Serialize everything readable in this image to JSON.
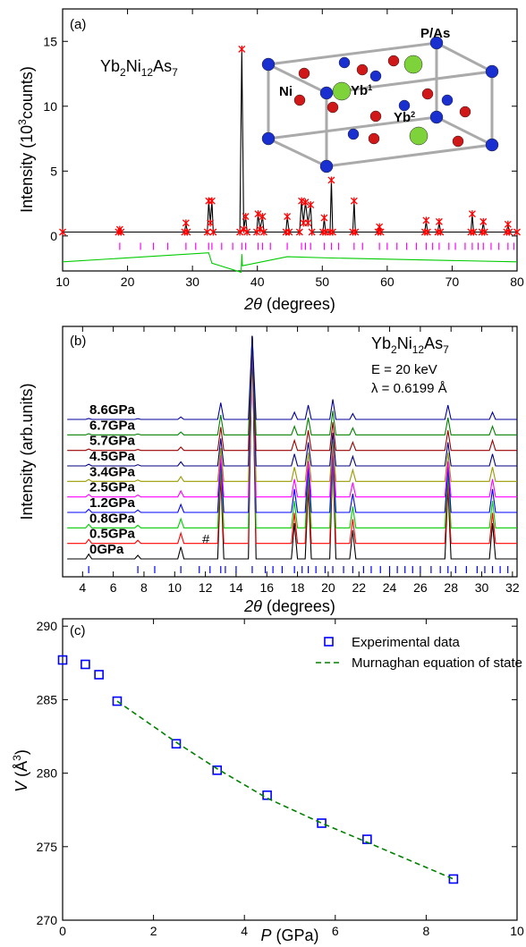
{
  "chart_data": [
    {
      "type": "line",
      "label": "(a)",
      "formula": [
        "Yb",
        "2",
        "Ni",
        "12",
        "As",
        "7"
      ],
      "inset_labels": {
        "p_as": "P/As",
        "ni": "Ni",
        "yb1": [
          "Yb",
          "1"
        ],
        "yb2": [
          "Yb",
          "2"
        ]
      },
      "ylabel": [
        "Intensity (10",
        "3",
        "counts)"
      ],
      "xlabel": [
        "2θ",
        " (degrees)"
      ],
      "xlim": [
        10,
        80
      ],
      "xticks": [
        10,
        20,
        30,
        40,
        50,
        60,
        70,
        80
      ],
      "ylim": [
        -2.7,
        17.5
      ],
      "yticks": [
        0,
        5,
        10,
        15
      ],
      "x": [
        10,
        18.6,
        18.8,
        19.0,
        28.8,
        29.0,
        29.2,
        32.3,
        32.5,
        32.75,
        33.0,
        33.2,
        37.3,
        37.6,
        37.9,
        38.2,
        38.4,
        39.9,
        40.1,
        40.4,
        40.8,
        41.0,
        44.4,
        44.6,
        44.9,
        46.5,
        46.8,
        47.1,
        47.4,
        47.8,
        48.2,
        48.4,
        50.1,
        50.3,
        50.5,
        51.2,
        51.4,
        51.6,
        54.7,
        54.9,
        55.1,
        58.6,
        58.8,
        59.0,
        65.8,
        66.0,
        66.2,
        67.8,
        68.0,
        68.2,
        72.9,
        73.1,
        73.3,
        74.6,
        74.8,
        75.0,
        78.4,
        78.6,
        78.8,
        80
      ],
      "series": [
        {
          "color": "#000000",
          "values": [
            0.3,
            0.3,
            0.5,
            0.3,
            0.3,
            1.0,
            0.3,
            0.3,
            2.7,
            1.0,
            2.7,
            0.3,
            0.3,
            14.4,
            0.5,
            1.5,
            0.3,
            0.3,
            1.7,
            0.5,
            1.5,
            0.3,
            0.3,
            1.5,
            0.3,
            0.3,
            2.7,
            1.0,
            2.6,
            1.0,
            2.4,
            0.3,
            0.3,
            1.4,
            0.3,
            0.3,
            4.3,
            0.3,
            0.3,
            2.7,
            0.3,
            0.3,
            0.7,
            0.3,
            0.3,
            1.2,
            0.3,
            0.3,
            1.1,
            0.3,
            0.3,
            1.7,
            0.3,
            0.3,
            1.1,
            0.3,
            0.3,
            0.9,
            0.3,
            0.3
          ]
        },
        {
          "color": "#ff0000",
          "marker": "x",
          "values": [
            0.3,
            0.3,
            0.5,
            0.3,
            0.3,
            1.0,
            0.3,
            0.3,
            2.7,
            1.0,
            2.7,
            0.3,
            0.3,
            14.4,
            0.5,
            1.5,
            0.3,
            0.3,
            1.7,
            0.5,
            1.5,
            0.3,
            0.3,
            1.5,
            0.3,
            0.3,
            2.7,
            1.0,
            2.6,
            1.0,
            2.4,
            0.3,
            0.3,
            1.4,
            0.3,
            0.3,
            4.3,
            0.3,
            0.3,
            2.7,
            0.3,
            0.3,
            0.7,
            0.3,
            0.3,
            1.2,
            0.3,
            0.3,
            1.1,
            0.3,
            0.3,
            1.7,
            0.3,
            0.3,
            1.1,
            0.3,
            0.3,
            0.9,
            0.3,
            0.3
          ]
        },
        {
          "color": "#00cc00",
          "x": [
            10,
            32.5,
            33.0,
            37.5,
            37.6,
            37.7,
            44.6,
            51.4,
            80
          ],
          "values": [
            -2.0,
            -1.3,
            -2.1,
            -2.8,
            -1.4,
            -2.3,
            -1.6,
            -1.7,
            -2.0
          ]
        }
      ],
      "bragg_ticks": {
        "color": "#ff00ff",
        "value": -0.8,
        "x": [
          18.8,
          22,
          24,
          26.2,
          29,
          30.5,
          32.5,
          33,
          34.5,
          36.2,
          37.6,
          38.2,
          40.1,
          40.8,
          42,
          44.6,
          46.8,
          47.4,
          48.2,
          50.3,
          51.4,
          52.5,
          54.9,
          56.2,
          58.8,
          60,
          61.5,
          63,
          64.5,
          66,
          67,
          68,
          69.5,
          70.5,
          72,
          73.1,
          74,
          74.8,
          76,
          77.2,
          78.6,
          79.5
        ]
      }
    },
    {
      "type": "line",
      "label": "(b)",
      "formula": [
        "Yb",
        "2",
        "Ni",
        "12",
        "As",
        "7"
      ],
      "annotations": [
        "E = 20 keV",
        "λ = 0.6199 Å",
        "#"
      ],
      "ylabel": "Intensity (arb.units)",
      "xlabel": [
        "2θ",
        " (degrees)"
      ],
      "xlim": [
        2.7,
        32.3
      ],
      "xticks": [
        4,
        6,
        8,
        10,
        12,
        14,
        16,
        18,
        20,
        22,
        24,
        26,
        28,
        30,
        32
      ],
      "ylim": [
        -5,
        100
      ],
      "x": [
        3,
        4.2,
        4.4,
        4.6,
        7.4,
        7.6,
        7.8,
        10.2,
        10.4,
        10.6,
        12.8,
        13.0,
        13.2,
        14.8,
        15.05,
        15.3,
        17.6,
        17.8,
        18.0,
        18.5,
        18.7,
        18.9,
        20.1,
        20.3,
        20.5,
        21.4,
        21.6,
        21.8,
        27.6,
        27.8,
        28.0,
        30.5,
        30.7,
        30.9,
        32.3
      ],
      "series": [
        {
          "name": "0GPa",
          "color": "#000000",
          "values": [
            2.5,
            2.5,
            4.5,
            2.5,
            2.5,
            4.0,
            2.5,
            2.5,
            7.5,
            2.5,
            2.5,
            37.5,
            2.5,
            2.5,
            96,
            2.5,
            2.5,
            17.5,
            2.5,
            2.5,
            32.5,
            2.5,
            2.5,
            44.5,
            2.5,
            2.5,
            14.5,
            2.5,
            2.5,
            32.5,
            2.5,
            2.5,
            17.5,
            2.5,
            2.5
          ]
        },
        {
          "name": "0.5GPa",
          "color": "#ff0000",
          "values": [
            9,
            9,
            10.7,
            9,
            9,
            10.3,
            9,
            9,
            13.3,
            9,
            9,
            38.8,
            9,
            9,
            96,
            9,
            9,
            21.8,
            9,
            9,
            34.5,
            9,
            9,
            44.7,
            9,
            9,
            19.2,
            9,
            9,
            34.5,
            9,
            9,
            21.8,
            9,
            9
          ]
        },
        {
          "name": "0.8GPa",
          "color": "#00cc00",
          "values": [
            15.5,
            15.5,
            17.0,
            15.5,
            15.5,
            16.6,
            15.5,
            15.5,
            19.3,
            15.5,
            15.5,
            41.8,
            15.5,
            15.5,
            96,
            15.5,
            15.5,
            26.8,
            15.5,
            15.5,
            38.0,
            15.5,
            15.5,
            47.0,
            15.5,
            15.5,
            24.5,
            15.5,
            15.5,
            38.0,
            15.5,
            15.5,
            26.8,
            15.5,
            15.5
          ]
        },
        {
          "name": "1.2GPa",
          "color": "#0000ff",
          "values": [
            22,
            22,
            23.3,
            22,
            22,
            23.0,
            22,
            22,
            25.3,
            22,
            22,
            44.8,
            22,
            22,
            96,
            22,
            22,
            31.8,
            22,
            22,
            41.5,
            22,
            22,
            49.3,
            22,
            22,
            29.8,
            22,
            22,
            41.5,
            22,
            22,
            31.8,
            22,
            22
          ]
        },
        {
          "name": "2.5GPa",
          "color": "#ff00ff",
          "values": [
            28.5,
            28.5,
            29.5,
            28.5,
            28.5,
            29.3,
            28.5,
            28.5,
            31.0,
            28.5,
            28.5,
            46.0,
            28.5,
            28.5,
            96,
            28.5,
            28.5,
            36.0,
            28.5,
            28.5,
            43.5,
            28.5,
            28.5,
            49.5,
            28.5,
            28.5,
            34.5,
            28.5,
            28.5,
            43.5,
            28.5,
            28.5,
            36.0,
            28.5,
            28.5
          ]
        },
        {
          "name": "3.4GPa",
          "color": "#999900",
          "values": [
            35,
            35,
            35.8,
            35,
            35,
            35.6,
            35,
            35,
            37.0,
            35,
            35,
            49.0,
            35,
            35,
            96,
            35,
            35,
            41.0,
            35,
            35,
            47.0,
            35,
            35,
            51.8,
            35,
            35,
            39.8,
            35,
            35,
            47.0,
            35,
            35,
            41.0,
            35,
            35
          ]
        },
        {
          "name": "4.5GPa",
          "color": "#000080",
          "values": [
            41.5,
            41.5,
            42.2,
            41.5,
            41.5,
            42.0,
            41.5,
            41.5,
            43.2,
            41.5,
            41.5,
            53.0,
            41.5,
            41.5,
            96,
            41.5,
            41.5,
            46.5,
            41.5,
            41.5,
            51.4,
            41.5,
            41.5,
            55.4,
            41.5,
            41.5,
            45.5,
            41.5,
            41.5,
            51.4,
            41.5,
            41.5,
            46.5,
            41.5,
            41.5
          ]
        },
        {
          "name": "5.7GPa",
          "color": "#990000",
          "values": [
            48,
            48,
            48.6,
            48,
            48,
            48.4,
            48,
            48,
            49.4,
            48,
            48,
            57.8,
            48,
            48,
            96,
            48,
            48,
            52.2,
            48,
            48,
            56.4,
            48,
            48,
            59.8,
            48,
            48,
            51.4,
            48,
            48,
            56.4,
            48,
            48,
            52.2,
            48,
            48
          ]
        },
        {
          "name": "6.7GPa",
          "color": "#008000",
          "values": [
            54.5,
            54.5,
            55.0,
            54.5,
            54.5,
            54.9,
            54.5,
            54.5,
            55.7,
            54.5,
            54.5,
            62.9,
            54.5,
            54.5,
            96,
            54.5,
            54.5,
            58.1,
            54.5,
            54.5,
            61.7,
            54.5,
            54.5,
            64.6,
            54.5,
            54.5,
            57.4,
            54.5,
            54.5,
            61.7,
            54.5,
            54.5,
            58.1,
            54.5,
            54.5
          ]
        },
        {
          "name": "8.6GPa",
          "color": "#000099",
          "values": [
            61,
            61,
            61.4,
            61,
            61,
            61.3,
            61,
            61,
            62.0,
            61,
            61,
            68.0,
            61,
            61,
            96,
            61,
            61,
            64.0,
            61,
            61,
            67.0,
            61,
            61,
            69.4,
            61,
            61,
            63.4,
            61,
            61,
            67.0,
            61,
            61,
            64.0,
            61,
            61
          ]
        }
      ],
      "bragg_ticks": {
        "color": "#0000ff",
        "value": -2,
        "x": [
          4.4,
          7.6,
          8.7,
          10.4,
          11.6,
          12.3,
          13.0,
          13.3,
          14.0,
          15.05,
          15.9,
          16.4,
          17.0,
          17.8,
          18.3,
          18.7,
          19.2,
          19.8,
          20.3,
          21.0,
          21.6,
          22.3,
          22.8,
          23.4,
          24.0,
          24.5,
          25.0,
          25.5,
          26.0,
          26.7,
          27.3,
          27.8,
          28.3,
          29.0,
          29.7,
          30.2,
          30.7,
          31.2,
          31.7
        ]
      }
    },
    {
      "type": "scatter",
      "label": "(c)",
      "xlabel": [
        "P",
        " (GPa)"
      ],
      "ylabel": [
        "V",
        " (Å",
        "3",
        ")"
      ],
      "xlim": [
        0,
        10
      ],
      "xticks": [
        0,
        2,
        4,
        6,
        8,
        10
      ],
      "ylim": [
        270,
        290.5
      ],
      "yticks": [
        270,
        275,
        280,
        285,
        290
      ],
      "legend": "upper right",
      "series": [
        {
          "name": "Experimental data",
          "color": "#0000ff",
          "marker": "square",
          "x": [
            0,
            0.5,
            0.8,
            1.2,
            2.5,
            3.4,
            4.5,
            5.7,
            6.7,
            8.6
          ],
          "values": [
            287.7,
            287.4,
            286.7,
            284.9,
            282.0,
            280.2,
            278.5,
            276.6,
            275.5,
            272.8
          ]
        },
        {
          "name": "Murnaghan equation of state",
          "color": "#008000",
          "dash": true,
          "x": [
            1.2,
            2.5,
            3.4,
            4.5,
            5.7,
            6.7,
            8.6
          ],
          "values": [
            284.9,
            282.1,
            280.3,
            278.3,
            276.6,
            275.3,
            272.8
          ]
        }
      ]
    }
  ]
}
